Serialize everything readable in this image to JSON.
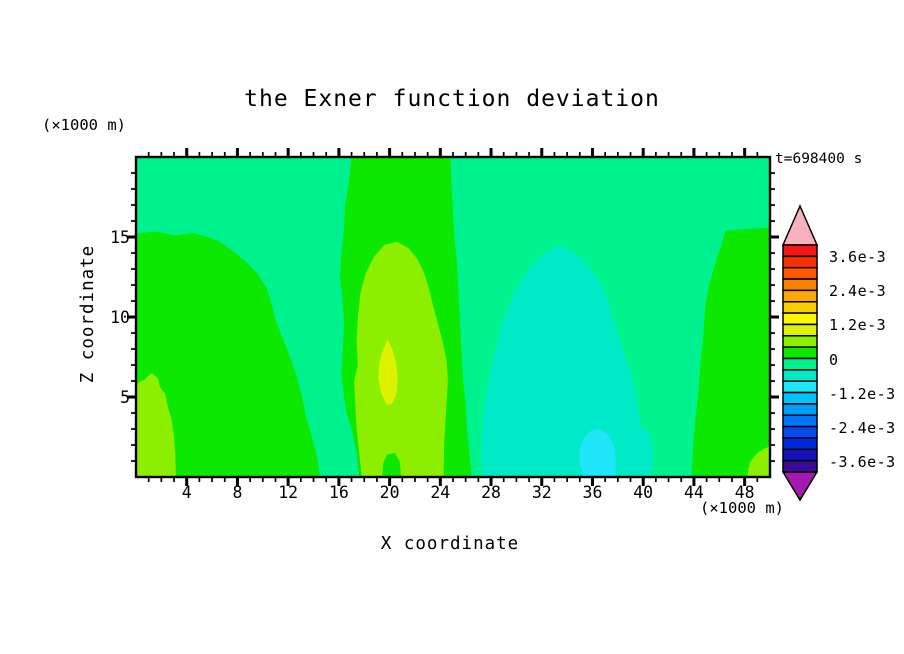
{
  "page": {
    "background": "#FFFFFF"
  },
  "chart_data": {
    "type": "heatmap",
    "title": "the Exner function deviation",
    "xlabel": "X coordinate",
    "ylabel": "Z coordinate",
    "x_axis_units": "(×1000 m)",
    "y_axis_units": "(×1000 m)",
    "time_annotation": "t=698400 s",
    "xlim": [
      0,
      50
    ],
    "ylim": [
      0,
      20
    ],
    "xticks_labeled": [
      4,
      8,
      12,
      16,
      20,
      24,
      28,
      32,
      36,
      40,
      44,
      48
    ],
    "yticks_labeled": [
      5,
      10,
      15
    ],
    "minor_tick_step": 1,
    "grid": false,
    "legend_position": "right-colorbar",
    "colorbar": {
      "value_min": -0.004,
      "value_max": 0.004,
      "segment_step": 0.0004,
      "labels_top_to_bottom": [
        "3.6e-3",
        "2.4e-3",
        "1.2e-3",
        "0",
        "-1.2e-3",
        "-2.4e-3",
        "-3.6e-3"
      ],
      "segment_colors_top_to_bottom": [
        "#F81616",
        "#F83000",
        "#FC5800",
        "#FC8000",
        "#FCA800",
        "#FCD000",
        "#FCF800",
        "#DEF200",
        "#8DEF00",
        "#0CE800",
        "#00F28E",
        "#00EAC8",
        "#1EE6F8",
        "#00C4FA",
        "#009CFA",
        "#0074FA",
        "#004CF0",
        "#0028DC",
        "#1412B4",
        "#3C0A94"
      ],
      "over_range_arrow_color": "#F8B2BE",
      "under_range_arrow_color": "#A619AE"
    },
    "field_regions": [
      {
        "name": "background-field",
        "value_band": "-4e-4 to 0",
        "color": "#00F28E",
        "polygon": "full"
      },
      {
        "name": "green-left-blob",
        "value_band": "0 to 4e-4",
        "color": "#0CE800",
        "polygon": [
          [
            0,
            15.2
          ],
          [
            1.5,
            15.35
          ],
          [
            3,
            15.1
          ],
          [
            4.5,
            15.25
          ],
          [
            5.5,
            15.05
          ],
          [
            6.5,
            14.75
          ],
          [
            7.5,
            14.2
          ],
          [
            8.6,
            13.5
          ],
          [
            9.6,
            12.7
          ],
          [
            10.3,
            11.8
          ],
          [
            10.7,
            10.8
          ],
          [
            11.0,
            9.8
          ],
          [
            11.6,
            8.6
          ],
          [
            12.2,
            7.4
          ],
          [
            12.7,
            6.2
          ],
          [
            13.1,
            5.0
          ],
          [
            13.4,
            3.8
          ],
          [
            13.9,
            2.4
          ],
          [
            14.3,
            1.2
          ],
          [
            14.5,
            0
          ],
          [
            0,
            0
          ]
        ]
      },
      {
        "name": "green-center-band",
        "value_band": "0 to 4e-4",
        "color": "#0CE800",
        "polygon": [
          [
            17.0,
            20
          ],
          [
            16.8,
            18.5
          ],
          [
            16.5,
            17
          ],
          [
            16.4,
            15.5
          ],
          [
            16.2,
            14
          ],
          [
            16.1,
            12.5
          ],
          [
            16.3,
            11
          ],
          [
            16.4,
            9.5
          ],
          [
            16.3,
            8
          ],
          [
            16.2,
            6.5
          ],
          [
            16.4,
            5
          ],
          [
            16.6,
            4
          ],
          [
            17.0,
            3
          ],
          [
            17.4,
            1.5
          ],
          [
            17.6,
            0
          ],
          [
            26.5,
            0
          ],
          [
            26.3,
            1.5
          ],
          [
            26.1,
            3
          ],
          [
            26.0,
            4.5
          ],
          [
            25.8,
            6
          ],
          [
            25.7,
            7.5
          ],
          [
            25.6,
            9
          ],
          [
            25.5,
            10.5
          ],
          [
            25.4,
            12
          ],
          [
            25.3,
            13.5
          ],
          [
            25.1,
            15
          ],
          [
            25.0,
            16.5
          ],
          [
            24.9,
            18
          ],
          [
            24.8,
            20
          ]
        ]
      },
      {
        "name": "green-right-blob",
        "value_band": "0 to 4e-4",
        "color": "#0CE800",
        "polygon": [
          [
            50,
            15.6
          ],
          [
            48.2,
            15.5
          ],
          [
            46.5,
            15.4
          ],
          [
            46.2,
            14.6
          ],
          [
            45.8,
            13.6
          ],
          [
            45.4,
            12.6
          ],
          [
            45.1,
            11.6
          ],
          [
            44.9,
            10.6
          ],
          [
            44.8,
            9.6
          ],
          [
            44.7,
            8.4
          ],
          [
            44.5,
            7
          ],
          [
            44.4,
            5.6
          ],
          [
            44.2,
            4.2
          ],
          [
            44.0,
            2.6
          ],
          [
            43.9,
            1.2
          ],
          [
            43.8,
            0
          ],
          [
            50,
            0
          ]
        ]
      },
      {
        "name": "chartreuse-left-patch",
        "value_band": "4e-4 to 8e-4",
        "color": "#8DEF00",
        "polygon": [
          [
            0,
            5.8
          ],
          [
            0.7,
            6.1
          ],
          [
            1.2,
            6.5
          ],
          [
            1.7,
            6.2
          ],
          [
            1.9,
            5.6
          ],
          [
            2.3,
            5.2
          ],
          [
            2.5,
            4.4
          ],
          [
            2.8,
            3.6
          ],
          [
            3.0,
            2.6
          ],
          [
            3.1,
            1.4
          ],
          [
            3.15,
            0
          ],
          [
            0,
            0
          ]
        ]
      },
      {
        "name": "chartreuse-center-column",
        "value_band": "4e-4 to 8e-4",
        "color": "#8DEF00",
        "polygon": [
          [
            17.8,
            0
          ],
          [
            17.6,
            1.5
          ],
          [
            17.4,
            3
          ],
          [
            17.3,
            4.5
          ],
          [
            17.2,
            6
          ],
          [
            17.5,
            7
          ],
          [
            17.4,
            8.5
          ],
          [
            17.5,
            10
          ],
          [
            17.7,
            11.5
          ],
          [
            18.1,
            12.7
          ],
          [
            18.8,
            13.8
          ],
          [
            19.6,
            14.5
          ],
          [
            20.6,
            14.7
          ],
          [
            21.5,
            14.3
          ],
          [
            22.2,
            13.6
          ],
          [
            22.7,
            12.8
          ],
          [
            23.1,
            11.8
          ],
          [
            23.4,
            10.8
          ],
          [
            23.8,
            9.6
          ],
          [
            24.2,
            8.4
          ],
          [
            24.5,
            7.2
          ],
          [
            24.6,
            6.0
          ],
          [
            24.5,
            4.8
          ],
          [
            24.4,
            3.4
          ],
          [
            24.3,
            2.0
          ],
          [
            24.25,
            0
          ],
          [
            20.9,
            0
          ],
          [
            20.8,
            1.0
          ],
          [
            20.4,
            1.5
          ],
          [
            19.8,
            1.4
          ],
          [
            19.5,
            0.9
          ],
          [
            19.4,
            0
          ]
        ]
      },
      {
        "name": "chartreuse-bottom-right-corner",
        "value_band": "4e-4 to 8e-4",
        "color": "#8DEF00",
        "polygon": [
          [
            48.2,
            0
          ],
          [
            48.4,
            0.9
          ],
          [
            49.0,
            1.5
          ],
          [
            49.6,
            1.8
          ],
          [
            50,
            1.9
          ],
          [
            50,
            0
          ]
        ]
      },
      {
        "name": "yellow-core",
        "value_band": "8e-4 to 1.2e-3",
        "color": "#DEF200",
        "polygon": [
          [
            19.8,
            4.5
          ],
          [
            19.35,
            5.2
          ],
          [
            19.1,
            6.2
          ],
          [
            19.2,
            7.2
          ],
          [
            19.5,
            8.0
          ],
          [
            19.85,
            8.6
          ],
          [
            20.2,
            8.0
          ],
          [
            20.5,
            7.2
          ],
          [
            20.65,
            6.2
          ],
          [
            20.55,
            5.2
          ],
          [
            20.2,
            4.6
          ]
        ]
      },
      {
        "name": "turquoise-low-dome",
        "value_band": "-8e-4 to -4e-4",
        "color": "#00EAC8",
        "polygon": [
          [
            27.3,
            0
          ],
          [
            27.2,
            1.5
          ],
          [
            27.3,
            3
          ],
          [
            27.5,
            4.5
          ],
          [
            27.8,
            6
          ],
          [
            28.2,
            7.5
          ],
          [
            28.7,
            9
          ],
          [
            29.3,
            10.5
          ],
          [
            30.1,
            11.9
          ],
          [
            31.1,
            13.1
          ],
          [
            32.2,
            14.0
          ],
          [
            33.2,
            14.45
          ],
          [
            34.3,
            14.15
          ],
          [
            35.3,
            13.5
          ],
          [
            36.2,
            12.6
          ],
          [
            36.9,
            11.6
          ],
          [
            37.4,
            10.5
          ],
          [
            37.8,
            9.4
          ],
          [
            38.3,
            8.2
          ],
          [
            38.8,
            7.0
          ],
          [
            39.3,
            5.6
          ],
          [
            39.6,
            4.2
          ],
          [
            39.8,
            3.2
          ],
          [
            40.6,
            2.6
          ],
          [
            40.8,
            1.8
          ],
          [
            40.7,
            0.8
          ],
          [
            40.6,
            0
          ]
        ]
      },
      {
        "name": "cyan-core",
        "value_band": "-1.2e-3 to -8e-4",
        "color": "#1EE6F8",
        "polygon": [
          [
            35.3,
            0
          ],
          [
            35.0,
            0.8
          ],
          [
            34.95,
            1.6
          ],
          [
            35.3,
            2.4
          ],
          [
            35.9,
            2.9
          ],
          [
            36.6,
            3.0
          ],
          [
            37.3,
            2.6
          ],
          [
            37.7,
            1.9
          ],
          [
            37.85,
            1.0
          ],
          [
            37.8,
            0
          ]
        ]
      }
    ]
  }
}
